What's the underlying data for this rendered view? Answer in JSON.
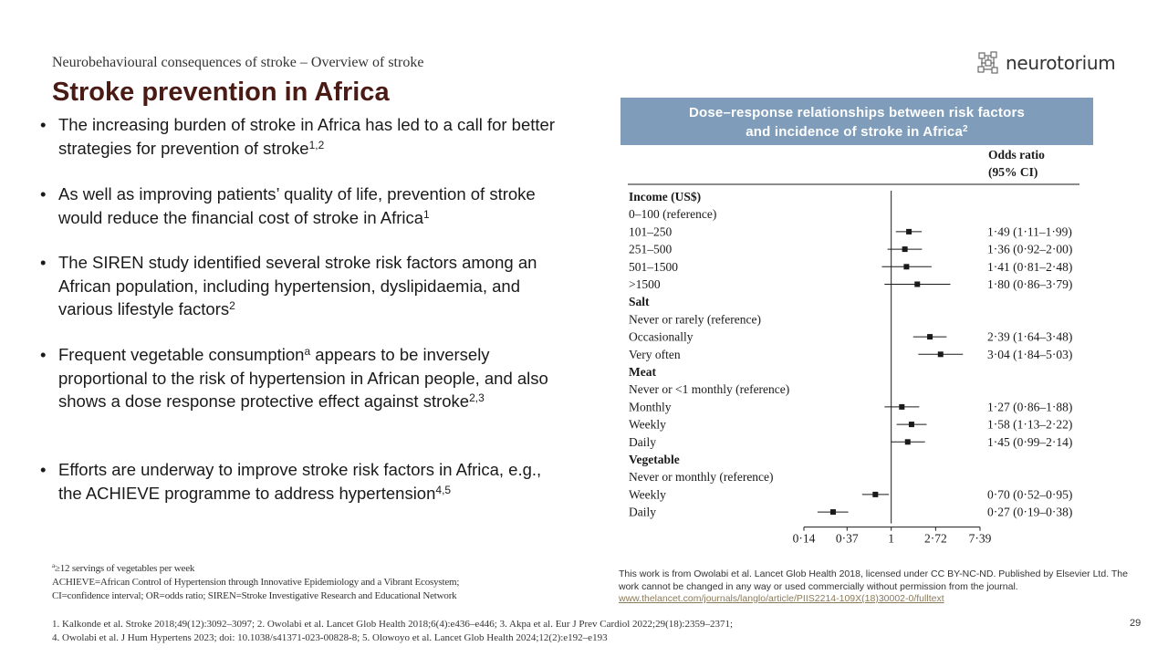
{
  "header": {
    "subtitle": "Neurobehavioural  consequences of stroke – Overview of stroke",
    "title": "Stroke prevention in Africa"
  },
  "logo": {
    "text": "neurotorium",
    "icon": "brain-network-icon"
  },
  "bullets": [
    {
      "text": "The increasing burden of stroke in Africa has led to a call for better strategies for prevention of stroke",
      "sup": "1,2"
    },
    {
      "text": "As well as improving patients’ quality of life, prevention of stroke would reduce the financial cost of stroke in Africa",
      "sup": "1"
    },
    {
      "text": "The SIREN study identified several stroke risk factors among an African population, including hypertension, dyslipidaemia, and various lifestyle factors",
      "sup": "2"
    },
    {
      "text_pre": "Frequent vegetable consumption",
      "sup_a": "a",
      "text": " appears to be inversely proportional to the risk of hypertension in African people, and also shows a dose response protective effect against stroke",
      "sup": "2,3"
    },
    {
      "text": "Efforts are underway to improve stroke risk factors in Africa, e.g., the ACHIEVE programme to address hypertension",
      "sup": "4,5"
    }
  ],
  "footnotes": {
    "a_mark": "a",
    "a_text": "≥12 servings of vegetables per week",
    "abbrev1": "ACHIEVE=African Control of Hypertension through Innovative Epidemiology and a Vibrant Ecosystem;",
    "abbrev2": "CI=confidence interval; OR=odds ratio; SIREN=Stroke Investigative Research and Educational Network"
  },
  "references": {
    "line1": "1. Kalkonde et al. Stroke 2018;49(12):3092–3097;   2. Owolabi et al. Lancet Glob Health 2018;6(4):e436–e446;  3. Akpa et al. Eur J Prev Cardiol 2022;29(18):2359–2371;",
    "line2": "4. Owolabi et al. J Hum Hypertens 2023; doi: 10.1038/s41371-023-00828-8;  5. Olowoyo et al. Lancet Glob Health 2024;12(2):e192–e193"
  },
  "page_number": "29",
  "figure": {
    "header_line1": "Dose–response  relationships  between  risk factors",
    "header_line2": "and incidence  of stroke in Africa",
    "header_sup": "2",
    "attribution_text": "This work is from Owolabi et al. Lancet Glob Health 2018, licensed under CC BY-NC-ND. Published by Elsevier Ltd. The work cannot be changed in any way or used commercially without permission from the journal.",
    "attribution_link": "www.thelancet.com/journals/langlo/article/PIIS2214-109X(18)30002-0/fulltext"
  },
  "chart_data": {
    "type": "scatter",
    "subtype": "forest_plot",
    "or_header_line1": "Odds ratio",
    "or_header_line2": "(95% CI)",
    "x_scale": "log",
    "x_ticks": [
      0.14,
      0.37,
      1,
      2.72,
      7.39
    ],
    "x_tick_labels": [
      "0·14",
      "0·37",
      "1",
      "2·72",
      "7·39"
    ],
    "reference_line": 1,
    "rows": [
      {
        "label": "Income (US$)",
        "kind": "group"
      },
      {
        "label": "0–100 (reference)",
        "kind": "ref"
      },
      {
        "label": "101–250",
        "kind": "est",
        "or": 1.49,
        "lo": 1.11,
        "hi": 1.99,
        "text": "1·49 (1·11–1·99)"
      },
      {
        "label": "251–500",
        "kind": "est",
        "or": 1.36,
        "lo": 0.92,
        "hi": 2.0,
        "text": "1·36 (0·92–2·00)"
      },
      {
        "label": "501–1500",
        "kind": "est",
        "or": 1.41,
        "lo": 0.81,
        "hi": 2.48,
        "text": "1·41 (0·81–2·48)"
      },
      {
        "label": ">1500",
        "kind": "est",
        "or": 1.8,
        "lo": 0.86,
        "hi": 3.79,
        "text": "1·80 (0·86–3·79)"
      },
      {
        "label": "Salt",
        "kind": "group"
      },
      {
        "label": "Never or rarely (reference)",
        "kind": "ref"
      },
      {
        "label": "Occasionally",
        "kind": "est",
        "or": 2.39,
        "lo": 1.64,
        "hi": 3.48,
        "text": "2·39 (1·64–3·48)"
      },
      {
        "label": "Very often",
        "kind": "est",
        "or": 3.04,
        "lo": 1.84,
        "hi": 5.03,
        "text": "3·04 (1·84–5·03)"
      },
      {
        "label": "Meat",
        "kind": "group"
      },
      {
        "label": "Never or <1 monthly (reference)",
        "kind": "ref"
      },
      {
        "label": "Monthly",
        "kind": "est",
        "or": 1.27,
        "lo": 0.86,
        "hi": 1.88,
        "text": "1·27 (0·86–1·88)"
      },
      {
        "label": "Weekly",
        "kind": "est",
        "or": 1.58,
        "lo": 1.13,
        "hi": 2.22,
        "text": "1·58 (1·13–2·22)"
      },
      {
        "label": "Daily",
        "kind": "est",
        "or": 1.45,
        "lo": 0.99,
        "hi": 2.14,
        "text": "1·45 (0·99–2·14)"
      },
      {
        "label": "Vegetable",
        "kind": "group"
      },
      {
        "label": "Never or monthly (reference)",
        "kind": "ref"
      },
      {
        "label": "Weekly",
        "kind": "est",
        "or": 0.7,
        "lo": 0.52,
        "hi": 0.95,
        "text": "0·70 (0·52–0·95)"
      },
      {
        "label": "Daily",
        "kind": "est",
        "or": 0.27,
        "lo": 0.19,
        "hi": 0.38,
        "text": "0·27 (0·19–0·38)"
      }
    ]
  }
}
